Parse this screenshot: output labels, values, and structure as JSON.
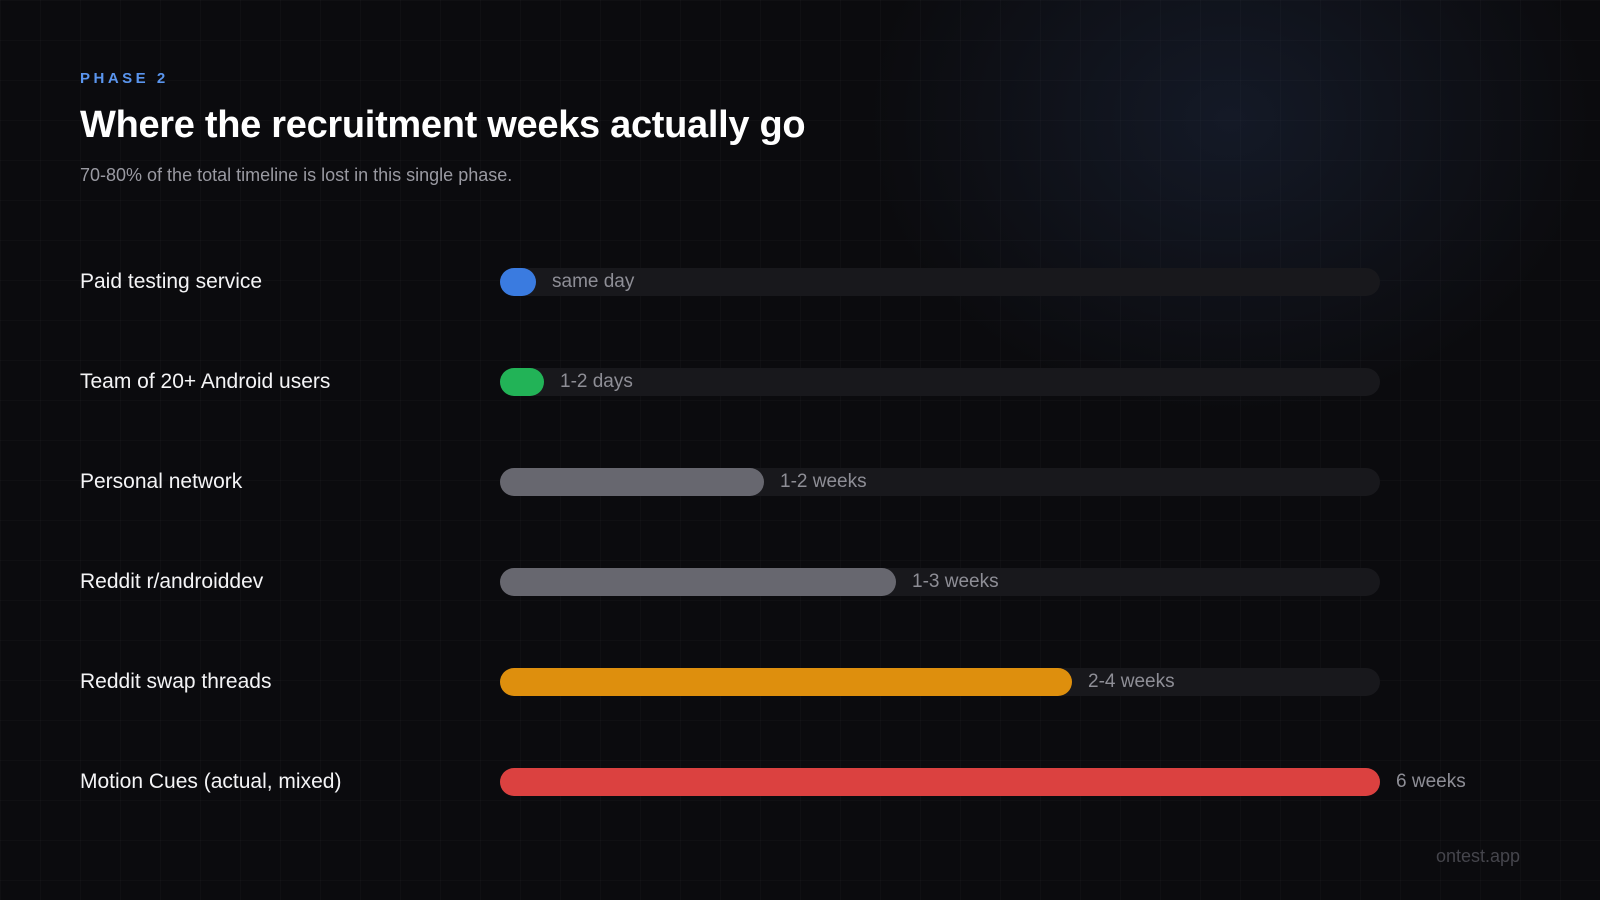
{
  "header": {
    "eyebrow": "PHASE 2",
    "title": "Where the recruitment weeks actually go",
    "subtitle": "70-80% of the total timeline is lost in this single phase."
  },
  "footer": {
    "brand": "ontest.app"
  },
  "colors": {
    "background": "#0b0b0e",
    "track": "#18181c",
    "accent": "#5a95ee"
  },
  "chart_data": {
    "type": "bar",
    "orientation": "horizontal",
    "title": "",
    "xlabel": "",
    "ylabel": "",
    "unit": "weeks",
    "xlim": [
      0,
      6
    ],
    "grid": false,
    "legend": "none",
    "categories": [
      "Paid testing service",
      "Team of 20+ Android users",
      "Personal network",
      "Reddit r/androiddev",
      "Reddit swap threads",
      "Motion Cues (actual, mixed)"
    ],
    "values": [
      0.1,
      0.3,
      1.8,
      2.7,
      3.9,
      6
    ],
    "value_labels": [
      "same day",
      "1-2 days",
      "1-2 weeks",
      "1-3 weeks",
      "2-4 weeks",
      "6 weeks"
    ],
    "colors": [
      "#3a7be0",
      "#22b357",
      "#67676f",
      "#67676f",
      "#de8f0d",
      "#db4140"
    ]
  }
}
